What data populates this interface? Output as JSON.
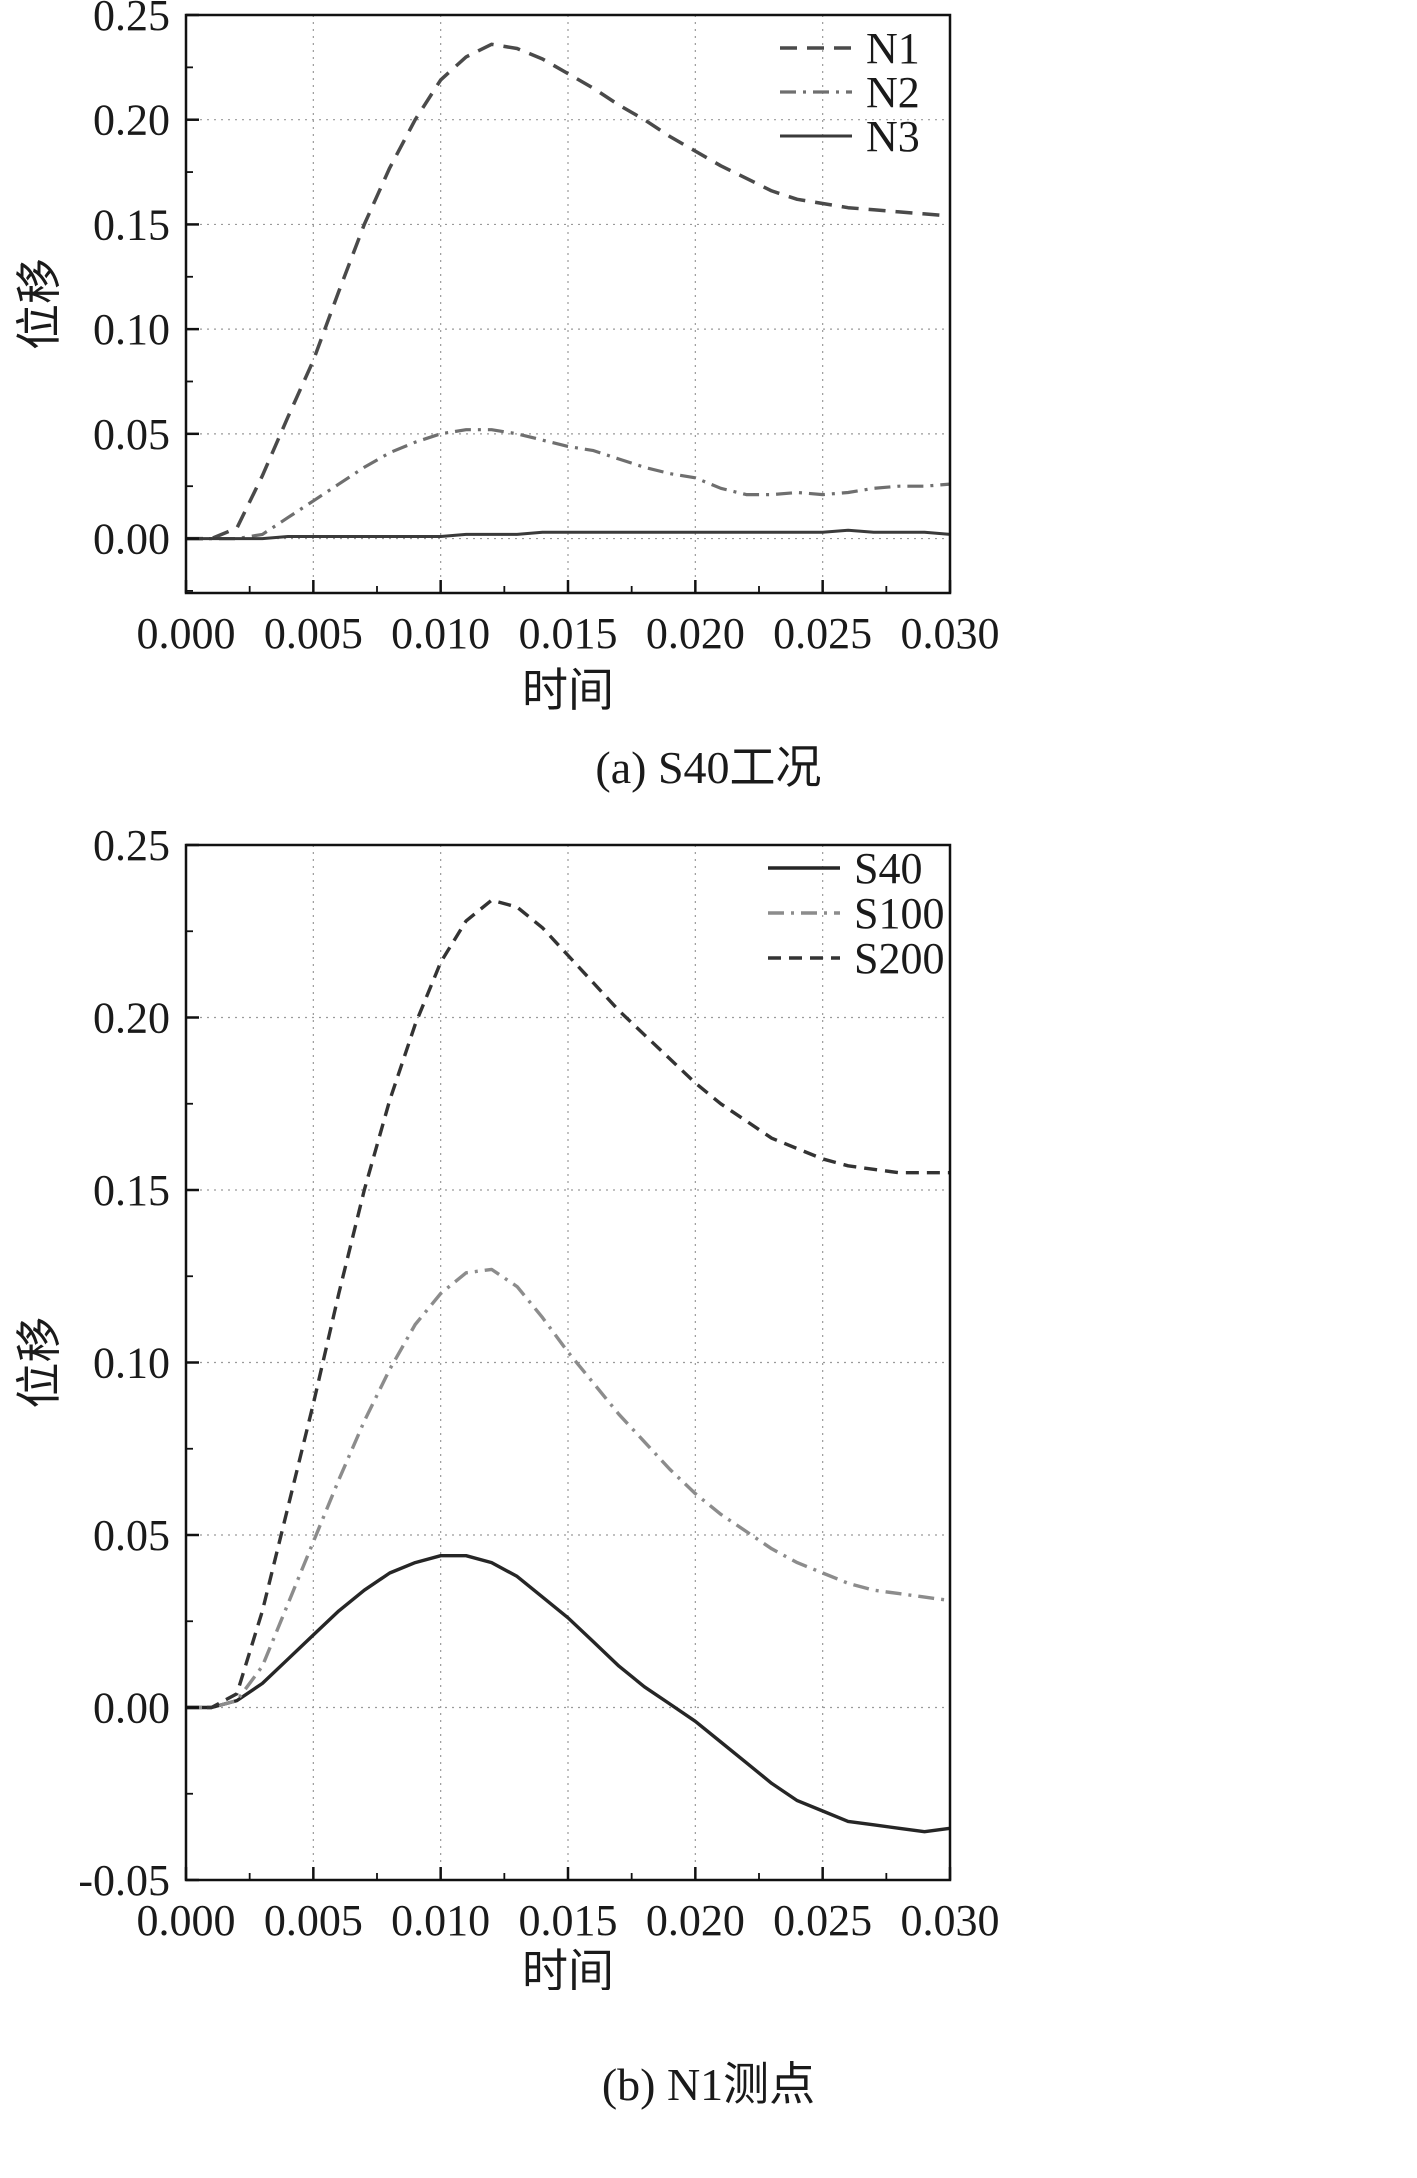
{
  "page": {
    "background": "#ffffff",
    "text_color": "#1a1a1a"
  },
  "chart_data": [
    {
      "id": "a",
      "type": "line",
      "caption": "(a) S40工况",
      "xlabel": "时间",
      "ylabel": "位移",
      "xlim": [
        0.0,
        0.03
      ],
      "ylim": [
        -0.026,
        0.25
      ],
      "grid": "dotted-major",
      "grid_color": "#9a9a9a",
      "legend_position": "top-right",
      "x_ticks": [
        0.0,
        0.005,
        0.01,
        0.015,
        0.02,
        0.025,
        0.03
      ],
      "x_tick_labels": [
        "0.000",
        "0.005",
        "0.010",
        "0.015",
        "0.020",
        "0.025",
        "0.030"
      ],
      "y_ticks": [
        0.0,
        0.05,
        0.1,
        0.15,
        0.2,
        0.25
      ],
      "y_tick_labels": [
        "0.00",
        "0.05",
        "0.10",
        "0.15",
        "0.20",
        "0.25"
      ],
      "series": [
        {
          "name": "N1",
          "style": "dashed",
          "dash": "17 10",
          "color": "#4a4a4a",
          "width": 3.5,
          "x": [
            0.0,
            0.001,
            0.002,
            0.003,
            0.004,
            0.005,
            0.006,
            0.007,
            0.008,
            0.009,
            0.01,
            0.011,
            0.012,
            0.013,
            0.014,
            0.015,
            0.016,
            0.017,
            0.018,
            0.019,
            0.02,
            0.021,
            0.022,
            0.023,
            0.024,
            0.025,
            0.026,
            0.027,
            0.028,
            0.029,
            0.03
          ],
          "y": [
            0.0,
            0.0,
            0.005,
            0.03,
            0.058,
            0.085,
            0.118,
            0.15,
            0.177,
            0.2,
            0.219,
            0.23,
            0.236,
            0.234,
            0.229,
            0.222,
            0.215,
            0.207,
            0.2,
            0.192,
            0.185,
            0.178,
            0.172,
            0.166,
            0.162,
            0.16,
            0.158,
            0.157,
            0.156,
            0.155,
            0.154
          ]
        },
        {
          "name": "N2",
          "style": "dash-dot",
          "dash": "16 7 3 7",
          "color": "#6f6f6f",
          "width": 3.2,
          "x": [
            0.0,
            0.001,
            0.002,
            0.003,
            0.004,
            0.005,
            0.006,
            0.007,
            0.008,
            0.009,
            0.01,
            0.011,
            0.012,
            0.013,
            0.014,
            0.015,
            0.016,
            0.017,
            0.018,
            0.019,
            0.02,
            0.021,
            0.022,
            0.023,
            0.024,
            0.025,
            0.026,
            0.027,
            0.028,
            0.029,
            0.03
          ],
          "y": [
            0.0,
            0.0,
            0.0,
            0.002,
            0.01,
            0.018,
            0.026,
            0.034,
            0.041,
            0.046,
            0.05,
            0.052,
            0.052,
            0.05,
            0.047,
            0.044,
            0.042,
            0.038,
            0.034,
            0.031,
            0.029,
            0.024,
            0.021,
            0.021,
            0.022,
            0.021,
            0.022,
            0.024,
            0.025,
            0.025,
            0.026
          ]
        },
        {
          "name": "N3",
          "style": "solid",
          "dash": "",
          "color": "#3a3a3a",
          "width": 3.0,
          "x": [
            0.0,
            0.001,
            0.002,
            0.003,
            0.004,
            0.005,
            0.006,
            0.007,
            0.008,
            0.009,
            0.01,
            0.011,
            0.012,
            0.013,
            0.014,
            0.015,
            0.016,
            0.017,
            0.018,
            0.019,
            0.02,
            0.021,
            0.022,
            0.023,
            0.024,
            0.025,
            0.026,
            0.027,
            0.028,
            0.029,
            0.03
          ],
          "y": [
            0.0,
            0.0,
            0.0,
            0.0,
            0.001,
            0.001,
            0.001,
            0.001,
            0.001,
            0.001,
            0.001,
            0.002,
            0.002,
            0.002,
            0.003,
            0.003,
            0.003,
            0.003,
            0.003,
            0.003,
            0.003,
            0.003,
            0.003,
            0.003,
            0.003,
            0.003,
            0.004,
            0.003,
            0.003,
            0.003,
            0.002
          ]
        }
      ]
    },
    {
      "id": "b",
      "type": "line",
      "caption": "(b) N1测点",
      "xlabel": "时间",
      "ylabel": "位移",
      "xlim": [
        0.0,
        0.03
      ],
      "ylim": [
        -0.05,
        0.25
      ],
      "grid": "dotted-major",
      "grid_color": "#9a9a9a",
      "legend_position": "top-right",
      "x_ticks": [
        0.0,
        0.005,
        0.01,
        0.015,
        0.02,
        0.025,
        0.03
      ],
      "x_tick_labels": [
        "0.000",
        "0.005",
        "0.010",
        "0.015",
        "0.020",
        "0.025",
        "0.030"
      ],
      "y_ticks": [
        -0.05,
        0.0,
        0.05,
        0.1,
        0.15,
        0.2,
        0.25
      ],
      "y_tick_labels": [
        "-0.05",
        "0.00",
        "0.05",
        "0.10",
        "0.15",
        "0.20",
        "0.25"
      ],
      "series": [
        {
          "name": "S40",
          "style": "solid",
          "dash": "",
          "color": "#262626",
          "width": 3.4,
          "x": [
            0.0,
            0.001,
            0.002,
            0.003,
            0.004,
            0.005,
            0.006,
            0.007,
            0.008,
            0.009,
            0.01,
            0.011,
            0.012,
            0.013,
            0.014,
            0.015,
            0.016,
            0.017,
            0.018,
            0.019,
            0.02,
            0.021,
            0.022,
            0.023,
            0.024,
            0.025,
            0.026,
            0.027,
            0.028,
            0.029,
            0.03
          ],
          "y": [
            0.0,
            0.0,
            0.002,
            0.007,
            0.014,
            0.021,
            0.028,
            0.034,
            0.039,
            0.042,
            0.044,
            0.044,
            0.042,
            0.038,
            0.032,
            0.026,
            0.019,
            0.012,
            0.006,
            0.001,
            -0.004,
            -0.01,
            -0.016,
            -0.022,
            -0.027,
            -0.03,
            -0.033,
            -0.034,
            -0.035,
            -0.036,
            -0.035
          ]
        },
        {
          "name": "S100",
          "style": "dash-dot",
          "dash": "16 7 3 7",
          "color": "#8c8c8c",
          "width": 3.4,
          "x": [
            0.0,
            0.001,
            0.002,
            0.003,
            0.004,
            0.005,
            0.006,
            0.007,
            0.008,
            0.009,
            0.01,
            0.011,
            0.012,
            0.013,
            0.014,
            0.015,
            0.016,
            0.017,
            0.018,
            0.019,
            0.02,
            0.021,
            0.022,
            0.023,
            0.024,
            0.025,
            0.026,
            0.027,
            0.028,
            0.029,
            0.03
          ],
          "y": [
            0.0,
            0.0,
            0.002,
            0.012,
            0.03,
            0.048,
            0.066,
            0.083,
            0.098,
            0.111,
            0.12,
            0.126,
            0.127,
            0.122,
            0.113,
            0.103,
            0.094,
            0.085,
            0.077,
            0.069,
            0.062,
            0.056,
            0.051,
            0.046,
            0.042,
            0.039,
            0.036,
            0.034,
            0.033,
            0.032,
            0.031
          ]
        },
        {
          "name": "S200",
          "style": "dashed",
          "dash": "13 8",
          "color": "#333333",
          "width": 3.4,
          "x": [
            0.0,
            0.001,
            0.002,
            0.003,
            0.004,
            0.005,
            0.006,
            0.007,
            0.008,
            0.009,
            0.01,
            0.011,
            0.012,
            0.013,
            0.014,
            0.015,
            0.016,
            0.017,
            0.018,
            0.019,
            0.02,
            0.021,
            0.022,
            0.023,
            0.024,
            0.025,
            0.026,
            0.027,
            0.028,
            0.029,
            0.03
          ],
          "y": [
            0.0,
            0.0,
            0.004,
            0.028,
            0.058,
            0.088,
            0.12,
            0.15,
            0.176,
            0.198,
            0.216,
            0.228,
            0.234,
            0.232,
            0.226,
            0.218,
            0.21,
            0.202,
            0.195,
            0.188,
            0.181,
            0.175,
            0.17,
            0.165,
            0.162,
            0.159,
            0.157,
            0.156,
            0.155,
            0.155,
            0.155
          ]
        }
      ]
    }
  ]
}
